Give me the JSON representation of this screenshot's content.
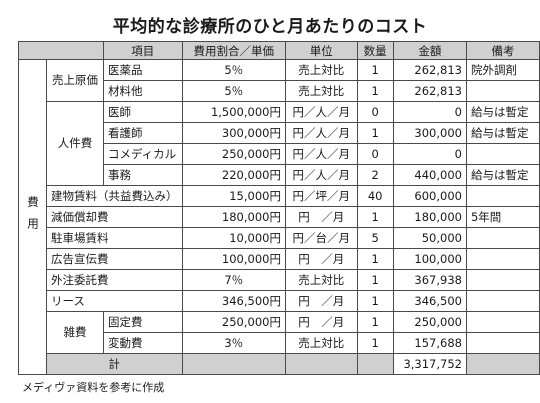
{
  "title": "平均的な診療所のひと月あたりのコスト",
  "headers": [
    "項目",
    "費用割合／単価",
    "単位",
    "数量",
    "金額",
    "備考"
  ],
  "group_label": "費用",
  "sub_groups": {
    "cogs": "売上原価",
    "personnel": "人件費",
    "misc": "雑費"
  },
  "rows": {
    "drugs": {
      "item": "医薬品",
      "rate": "5％",
      "unit": "売上対比",
      "qty": "1",
      "amount": "262,813",
      "note": "院外調剤"
    },
    "materials": {
      "item": "材料他",
      "rate": "5％",
      "unit": "売上対比",
      "qty": "1",
      "amount": "262,813",
      "note": ""
    },
    "doctor": {
      "item": "医師",
      "rate": "1,500,000円",
      "unit": "円／人／月",
      "qty": "0",
      "amount": "0",
      "note": "給与は暫定"
    },
    "nurse": {
      "item": "看護師",
      "rate": "300,000円",
      "unit": "円／人／月",
      "qty": "1",
      "amount": "300,000",
      "note": "給与は暫定"
    },
    "comedical": {
      "item": "コメディカル",
      "rate": "250,000円",
      "unit": "円／人／月",
      "qty": "0",
      "amount": "0",
      "note": ""
    },
    "clerical": {
      "item": "事務",
      "rate": "220,000円",
      "unit": "円／人／月",
      "qty": "2",
      "amount": "440,000",
      "note": "給与は暫定"
    },
    "rent": {
      "item": "建物賃料（共益費込み）",
      "rate": "15,000円",
      "unit": "円／坪／月",
      "qty": "40",
      "amount": "600,000",
      "note": ""
    },
    "depreciation": {
      "item": "減価償却費",
      "rate": "180,000円",
      "unit": "円　／月",
      "qty": "1",
      "amount": "180,000",
      "note": "5年間"
    },
    "parking": {
      "item": "駐車場賃料",
      "rate": "10,000円",
      "unit": "円／台／月",
      "qty": "5",
      "amount": "50,000",
      "note": ""
    },
    "advertising": {
      "item": "広告宣伝費",
      "rate": "100,000円",
      "unit": "円　／月",
      "qty": "1",
      "amount": "100,000",
      "note": ""
    },
    "outsourcing": {
      "item": "外注委託費",
      "rate": "7％",
      "unit": "売上対比",
      "qty": "1",
      "amount": "367,938",
      "note": ""
    },
    "lease": {
      "item": "リース",
      "rate": "346,500円",
      "unit": "円　／月",
      "qty": "1",
      "amount": "346,500",
      "note": ""
    },
    "fixed": {
      "item": "固定費",
      "rate": "250,000円",
      "unit": "円　／月",
      "qty": "1",
      "amount": "250,000",
      "note": ""
    },
    "variable": {
      "item": "変動費",
      "rate": "3％",
      "unit": "売上対比",
      "qty": "1",
      "amount": "157,688",
      "note": ""
    }
  },
  "total": {
    "label": "計",
    "amount": "3,317,752"
  },
  "footnote": "メディヴァ資料を参考に作成"
}
